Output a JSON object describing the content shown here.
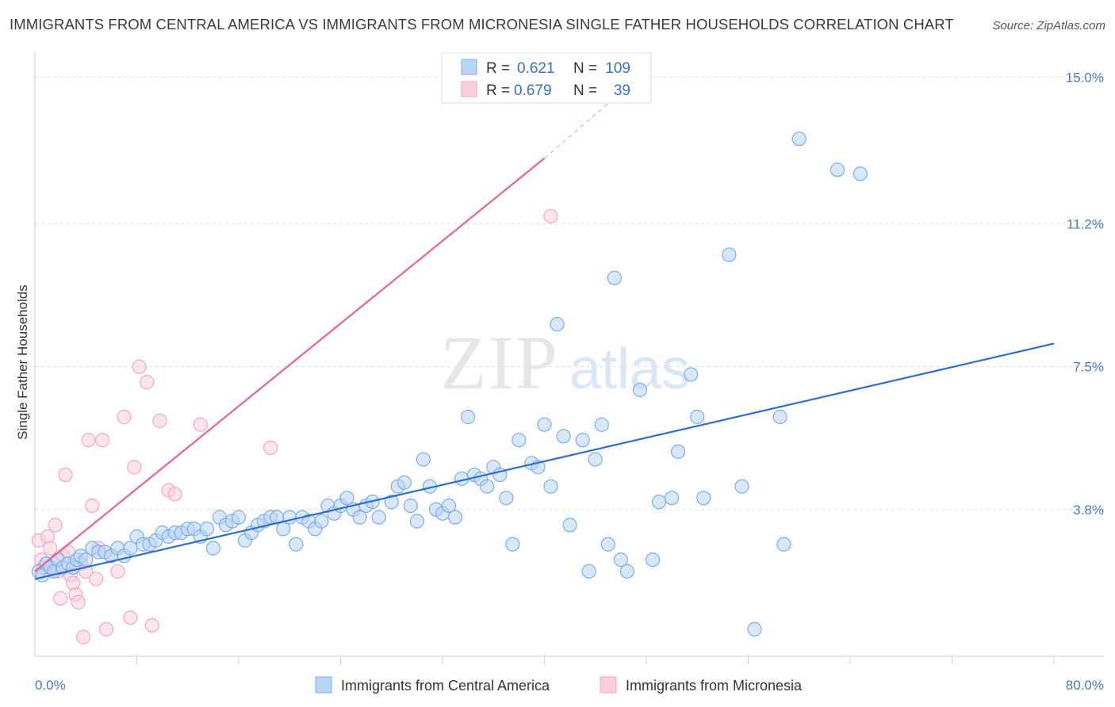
{
  "title": "IMMIGRANTS FROM CENTRAL AMERICA VS IMMIGRANTS FROM MICRONESIA SINGLE FATHER HOUSEHOLDS CORRELATION CHART",
  "source": "Source: ZipAtlas.com",
  "watermark": {
    "zip": "ZIP",
    "atlas": "atlas"
  },
  "colors": {
    "blue": "#7aaee8",
    "blue_line": "#2e6fcc",
    "pink": "#f4a7bf",
    "pink_line": "#e8648e",
    "tick_text": "#4a78c7",
    "grid": "#dddddd"
  },
  "legend": {
    "r_label": "R =",
    "n_label": "N =",
    "entries": [
      {
        "r": "0.621",
        "n": "109"
      },
      {
        "r": "0.679",
        "n": "39"
      }
    ]
  },
  "chart_data": {
    "type": "scatter",
    "ylabel": "Single Father Households",
    "xlim": [
      0,
      80
    ],
    "ylim": [
      0,
      15.5
    ],
    "x_tick_labels": [
      "0.0%",
      "80.0%"
    ],
    "y_ticks": [
      3.8,
      7.5,
      11.2,
      15.0
    ],
    "y_tick_labels": [
      "3.8%",
      "7.5%",
      "11.2%",
      "15.0%"
    ],
    "grid": "horizontal dashed",
    "series": [
      {
        "name": "Immigrants from Central America",
        "color": "#7aaee8",
        "trend": {
          "x0": 0,
          "y0": 2.0,
          "x1": 80,
          "y1": 8.1
        },
        "points": [
          [
            0.3,
            2.2
          ],
          [
            0.6,
            2.1
          ],
          [
            0.9,
            2.4
          ],
          [
            1.2,
            2.3
          ],
          [
            1.5,
            2.2
          ],
          [
            1.8,
            2.5
          ],
          [
            2.2,
            2.3
          ],
          [
            2.6,
            2.4
          ],
          [
            3.0,
            2.3
          ],
          [
            3.3,
            2.5
          ],
          [
            3.6,
            2.6
          ],
          [
            4.0,
            2.5
          ],
          [
            4.5,
            2.8
          ],
          [
            5.0,
            2.7
          ],
          [
            5.5,
            2.7
          ],
          [
            6.0,
            2.6
          ],
          [
            6.5,
            2.8
          ],
          [
            7.0,
            2.6
          ],
          [
            7.5,
            2.8
          ],
          [
            8.0,
            3.1
          ],
          [
            8.5,
            2.9
          ],
          [
            9.0,
            2.9
          ],
          [
            9.5,
            3.0
          ],
          [
            10.0,
            3.2
          ],
          [
            10.5,
            3.1
          ],
          [
            11.0,
            3.2
          ],
          [
            11.5,
            3.2
          ],
          [
            12.0,
            3.3
          ],
          [
            12.5,
            3.3
          ],
          [
            13.0,
            3.1
          ],
          [
            13.5,
            3.3
          ],
          [
            14.0,
            2.8
          ],
          [
            14.5,
            3.6
          ],
          [
            15.0,
            3.4
          ],
          [
            15.5,
            3.5
          ],
          [
            16.0,
            3.6
          ],
          [
            16.5,
            3.0
          ],
          [
            17.0,
            3.2
          ],
          [
            17.5,
            3.4
          ],
          [
            18.0,
            3.5
          ],
          [
            18.5,
            3.6
          ],
          [
            19.0,
            3.6
          ],
          [
            19.5,
            3.3
          ],
          [
            20.0,
            3.6
          ],
          [
            20.5,
            2.9
          ],
          [
            21.0,
            3.6
          ],
          [
            21.5,
            3.5
          ],
          [
            22.0,
            3.3
          ],
          [
            22.5,
            3.5
          ],
          [
            23.0,
            3.9
          ],
          [
            23.5,
            3.7
          ],
          [
            24.0,
            3.9
          ],
          [
            24.5,
            4.1
          ],
          [
            25.0,
            3.8
          ],
          [
            25.5,
            3.6
          ],
          [
            26.0,
            3.9
          ],
          [
            26.5,
            4.0
          ],
          [
            27.0,
            3.6
          ],
          [
            28.0,
            4.0
          ],
          [
            28.5,
            4.4
          ],
          [
            29.0,
            4.5
          ],
          [
            29.5,
            3.9
          ],
          [
            30.0,
            3.5
          ],
          [
            30.5,
            5.1
          ],
          [
            31.0,
            4.4
          ],
          [
            31.5,
            3.8
          ],
          [
            32.0,
            3.7
          ],
          [
            32.5,
            3.9
          ],
          [
            33.0,
            3.6
          ],
          [
            33.5,
            4.6
          ],
          [
            34.0,
            6.2
          ],
          [
            34.5,
            4.7
          ],
          [
            35.0,
            4.6
          ],
          [
            35.5,
            4.4
          ],
          [
            36.0,
            4.9
          ],
          [
            36.5,
            4.7
          ],
          [
            37.0,
            4.1
          ],
          [
            37.5,
            2.9
          ],
          [
            38.0,
            5.6
          ],
          [
            39.0,
            5.0
          ],
          [
            39.5,
            4.9
          ],
          [
            40.0,
            6.0
          ],
          [
            40.5,
            4.4
          ],
          [
            41.0,
            8.6
          ],
          [
            41.5,
            5.7
          ],
          [
            42.0,
            3.4
          ],
          [
            43.0,
            5.6
          ],
          [
            43.5,
            2.2
          ],
          [
            44.0,
            5.1
          ],
          [
            44.5,
            6.0
          ],
          [
            45.0,
            2.9
          ],
          [
            45.5,
            9.8
          ],
          [
            46.0,
            2.5
          ],
          [
            46.5,
            2.2
          ],
          [
            47.5,
            6.9
          ],
          [
            48.5,
            2.5
          ],
          [
            49.0,
            4.0
          ],
          [
            50.0,
            4.1
          ],
          [
            50.5,
            5.3
          ],
          [
            51.5,
            7.3
          ],
          [
            52.0,
            6.2
          ],
          [
            52.5,
            4.1
          ],
          [
            54.5,
            10.4
          ],
          [
            55.5,
            4.4
          ],
          [
            56.5,
            0.7
          ],
          [
            58.5,
            6.2
          ],
          [
            58.8,
            2.9
          ],
          [
            60.0,
            13.4
          ],
          [
            63.0,
            12.6
          ],
          [
            64.8,
            12.5
          ]
        ]
      },
      {
        "name": "Immigrants from Micronesia",
        "color": "#f4a7bf",
        "trend": {
          "x0": 0,
          "y0": 2.2,
          "x1": 40,
          "y1": 12.9,
          "dash_to": {
            "x": 46,
            "y": 14.6
          }
        },
        "points": [
          [
            0.3,
            3.0
          ],
          [
            0.5,
            2.5
          ],
          [
            0.7,
            2.3
          ],
          [
            1.0,
            3.1
          ],
          [
            1.2,
            2.8
          ],
          [
            1.4,
            2.4
          ],
          [
            1.6,
            3.4
          ],
          [
            1.8,
            2.2
          ],
          [
            2.0,
            1.5
          ],
          [
            2.2,
            2.6
          ],
          [
            2.4,
            4.7
          ],
          [
            2.6,
            2.7
          ],
          [
            2.8,
            2.1
          ],
          [
            3.0,
            1.9
          ],
          [
            3.2,
            1.6
          ],
          [
            3.4,
            1.4
          ],
          [
            3.6,
            2.4
          ],
          [
            3.8,
            0.5
          ],
          [
            4.0,
            2.2
          ],
          [
            4.2,
            5.6
          ],
          [
            4.5,
            3.9
          ],
          [
            4.8,
            2.0
          ],
          [
            5.0,
            2.8
          ],
          [
            5.3,
            5.6
          ],
          [
            5.6,
            0.7
          ],
          [
            6.0,
            2.6
          ],
          [
            6.5,
            2.2
          ],
          [
            7.0,
            6.2
          ],
          [
            7.5,
            1.0
          ],
          [
            7.8,
            4.9
          ],
          [
            8.2,
            7.5
          ],
          [
            8.8,
            7.1
          ],
          [
            9.2,
            0.8
          ],
          [
            9.8,
            6.1
          ],
          [
            10.5,
            4.3
          ],
          [
            11.0,
            4.2
          ],
          [
            13.0,
            6.0
          ],
          [
            18.5,
            5.4
          ],
          [
            40.5,
            11.4
          ]
        ]
      }
    ]
  },
  "bottom_legend": [
    {
      "label": "Immigrants from Central America"
    },
    {
      "label": "Immigrants from Micronesia"
    }
  ]
}
